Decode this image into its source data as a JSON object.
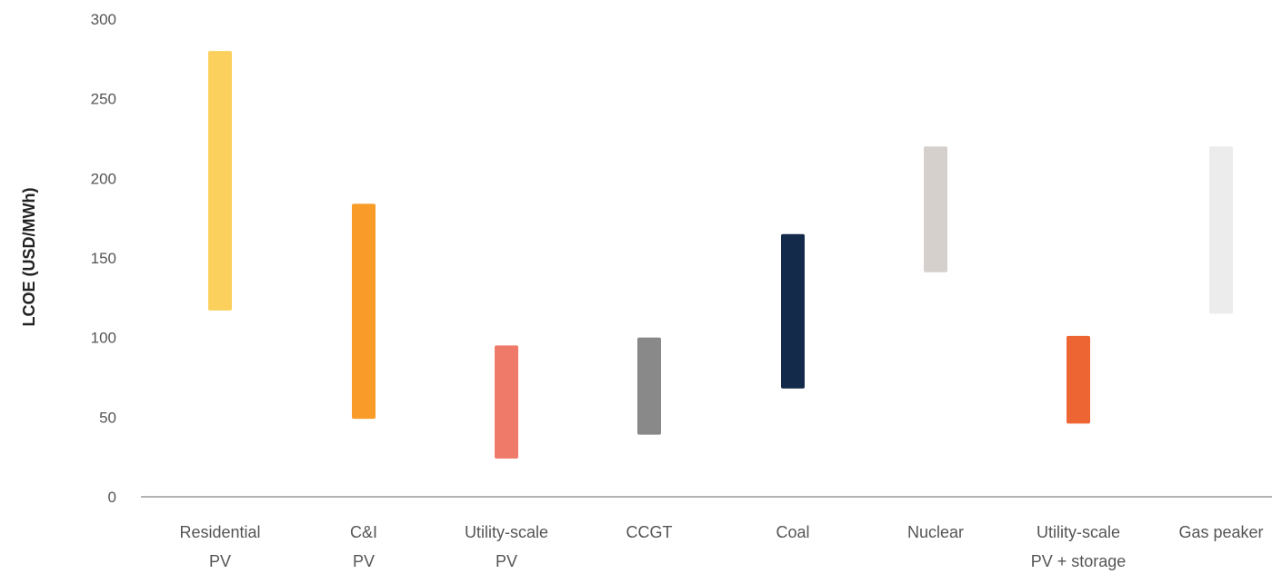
{
  "chart_data": {
    "type": "bar",
    "subtype": "floating-range",
    "ylabel": "LCOE (USD/MWh)",
    "xlabel": "",
    "ylim": [
      0,
      300
    ],
    "yticks": [
      0,
      50,
      100,
      150,
      200,
      250,
      300
    ],
    "grid": false,
    "legend": "none",
    "categories": [
      [
        "Residential",
        "PV"
      ],
      [
        "C&I",
        "PV"
      ],
      [
        "Utility-scale",
        "PV"
      ],
      [
        "CCGT"
      ],
      [
        "Coal"
      ],
      [
        "Nuclear"
      ],
      [
        "Utility-scale",
        "PV + storage"
      ],
      [
        "Gas peaker"
      ]
    ],
    "ranges": [
      [
        117,
        280
      ],
      [
        49,
        184
      ],
      [
        24,
        95
      ],
      [
        39,
        100
      ],
      [
        68,
        165
      ],
      [
        141,
        220
      ],
      [
        46,
        101
      ],
      [
        115,
        220
      ]
    ],
    "colors": [
      "#fbd05c",
      "#f89b28",
      "#f07a6a",
      "#898989",
      "#132a4a",
      "#d6d0cd",
      "#ec6533",
      "#ececec"
    ]
  }
}
